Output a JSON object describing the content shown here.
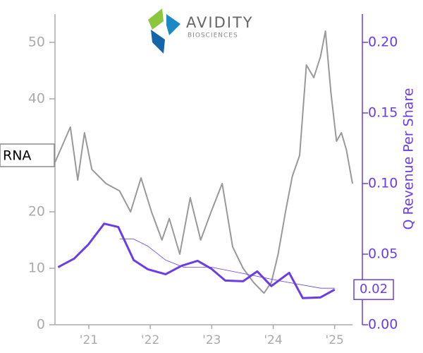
{
  "logo": {
    "name": "AVIDITY",
    "sub": "BIOSCIENCES"
  },
  "chart_data": {
    "type": "line",
    "ticker": "RNA",
    "y2label": "Q Revenue Per Share",
    "xlim": [
      2020.45,
      2025.29
    ],
    "xticks": [
      {
        "value": 2021,
        "label": "'21"
      },
      {
        "value": 2022,
        "label": "'22"
      },
      {
        "value": 2023,
        "label": "'23"
      },
      {
        "value": 2024,
        "label": "'24"
      },
      {
        "value": 2025,
        "label": "'25"
      }
    ],
    "ylim": [
      0,
      55
    ],
    "yticks": [
      0,
      10,
      20,
      40,
      50
    ],
    "y2lim": [
      0,
      0.22
    ],
    "y2ticks": [
      {
        "value": 0,
        "label": "0.00"
      },
      {
        "value": 0.05,
        "label": "0.05"
      },
      {
        "value": 0.1,
        "label": "0.10"
      },
      {
        "value": 0.15,
        "label": "0.15"
      },
      {
        "value": 0.2,
        "label": "0.20"
      }
    ],
    "series": [
      {
        "color": "#999999",
        "width": 2,
        "x": [
          2020.45,
          2020.7,
          2020.82,
          2020.93,
          2021.05,
          2021.28,
          2021.5,
          2021.68,
          2021.85,
          2022.02,
          2022.19,
          2022.31,
          2022.48,
          2022.65,
          2022.82,
          2022.99,
          2023.17,
          2023.34,
          2023.51,
          2023.68,
          2023.85,
          2023.97,
          2024.08,
          2024.2,
          2024.31,
          2024.43,
          2024.54,
          2024.66,
          2024.77,
          2024.85,
          2024.94,
          2025.03,
          2025.11,
          2025.19,
          2025.29
        ],
        "values": [
          28.75,
          35,
          25.6,
          34,
          27.5,
          25,
          23.7,
          20,
          26,
          20,
          15,
          18.8,
          12.5,
          22.5,
          15,
          20,
          25,
          13.8,
          10,
          7.5,
          5.6,
          7.5,
          12.5,
          20,
          26.25,
          30,
          46,
          43.75,
          47.5,
          52,
          41,
          32.5,
          34,
          31,
          25
        ]
      },
      {
        "color": "#6a3de8",
        "width": 3,
        "axis": "y2",
        "x": [
          2020.5,
          2020.76,
          2020.99,
          2021.25,
          2021.48,
          2021.73,
          2021.96,
          2022.25,
          2022.51,
          2022.77,
          2022.99,
          2023.22,
          2023.51,
          2023.74,
          2023.97,
          2024.26,
          2024.48,
          2024.77,
          2025.0
        ],
        "values": [
          0.0408,
          0.0468,
          0.0567,
          0.0716,
          0.0692,
          0.0458,
          0.0393,
          0.0358,
          0.0418,
          0.0453,
          0.0398,
          0.0313,
          0.0308,
          0.0378,
          0.0274,
          0.0368,
          0.0189,
          0.0194,
          0.0249
        ],
        "value_labels": [
          null,
          null,
          null,
          null,
          null,
          null,
          null,
          null,
          null,
          null,
          null,
          null,
          null,
          null,
          null,
          null,
          null,
          null,
          "0.02"
        ]
      },
      {
        "color": "#6a3de8",
        "width": 0.8,
        "axis": "y2",
        "x": [
          2021.5,
          2021.73,
          2021.96,
          2022.25,
          2022.54,
          2022.99,
          2023.57,
          2024.14,
          2024.77,
          2025.0
        ],
        "values": [
          0.0607,
          0.0607,
          0.0557,
          0.0458,
          0.0408,
          0.0408,
          0.0358,
          0.0308,
          0.0259,
          0.0259
        ]
      }
    ]
  }
}
